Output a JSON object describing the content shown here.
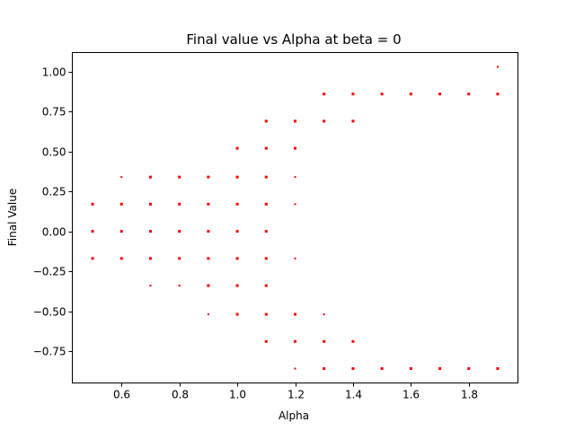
{
  "chart_data": {
    "type": "scatter",
    "title": "Final value vs Alpha at beta = 0",
    "xlabel": "Alpha",
    "ylabel": "Final Value",
    "xlim": [
      0.43,
      1.97
    ],
    "ylim": [
      -0.95,
      1.12
    ],
    "xticks": [
      0.6,
      0.8,
      1.0,
      1.2,
      1.4,
      1.6,
      1.8
    ],
    "xtick_labels": [
      "0.6",
      "0.8",
      "1.0",
      "1.2",
      "1.4",
      "1.6",
      "1.8"
    ],
    "yticks": [
      -0.75,
      -0.5,
      -0.25,
      0.0,
      0.25,
      0.5,
      0.75,
      1.0
    ],
    "ytick_labels": [
      "−0.75",
      "−0.50",
      "−0.25",
      "0.00",
      "0.25",
      "0.50",
      "0.75",
      "1.00"
    ],
    "grid": false,
    "marker_color": "#ff0000",
    "series": [
      {
        "points": [
          [
            0.5,
            0.17,
            2
          ],
          [
            0.5,
            0.0,
            2
          ],
          [
            0.5,
            -0.17,
            2
          ],
          [
            0.6,
            0.34,
            1
          ],
          [
            0.6,
            0.17,
            2
          ],
          [
            0.6,
            0.0,
            2
          ],
          [
            0.6,
            -0.17,
            2
          ],
          [
            0.7,
            0.34,
            2
          ],
          [
            0.7,
            0.17,
            2
          ],
          [
            0.7,
            0.0,
            2
          ],
          [
            0.7,
            -0.17,
            2
          ],
          [
            0.7,
            -0.34,
            1
          ],
          [
            0.8,
            0.34,
            2
          ],
          [
            0.8,
            0.17,
            2
          ],
          [
            0.8,
            0.0,
            2
          ],
          [
            0.8,
            -0.17,
            2
          ],
          [
            0.8,
            -0.34,
            1
          ],
          [
            0.9,
            0.34,
            2
          ],
          [
            0.9,
            0.17,
            2
          ],
          [
            0.9,
            0.0,
            2
          ],
          [
            0.9,
            -0.17,
            2
          ],
          [
            0.9,
            -0.34,
            2
          ],
          [
            0.9,
            -0.52,
            1
          ],
          [
            1.0,
            0.52,
            2
          ],
          [
            1.0,
            0.34,
            2
          ],
          [
            1.0,
            0.17,
            2
          ],
          [
            1.0,
            0.0,
            2
          ],
          [
            1.0,
            -0.17,
            2
          ],
          [
            1.0,
            -0.34,
            2
          ],
          [
            1.0,
            -0.52,
            2
          ],
          [
            1.1,
            0.69,
            2
          ],
          [
            1.1,
            0.52,
            2
          ],
          [
            1.1,
            0.34,
            2
          ],
          [
            1.1,
            0.17,
            2
          ],
          [
            1.1,
            0.0,
            2
          ],
          [
            1.1,
            -0.17,
            2
          ],
          [
            1.1,
            -0.34,
            2
          ],
          [
            1.1,
            -0.52,
            2
          ],
          [
            1.1,
            -0.69,
            2
          ],
          [
            1.2,
            0.69,
            2
          ],
          [
            1.2,
            0.52,
            2
          ],
          [
            1.2,
            0.34,
            1
          ],
          [
            1.2,
            0.17,
            1
          ],
          [
            1.2,
            -0.17,
            1
          ],
          [
            1.2,
            -0.52,
            2
          ],
          [
            1.2,
            -0.69,
            2
          ],
          [
            1.2,
            -0.86,
            1
          ],
          [
            1.3,
            0.86,
            2
          ],
          [
            1.3,
            0.69,
            2
          ],
          [
            1.3,
            -0.52,
            1
          ],
          [
            1.3,
            -0.69,
            2
          ],
          [
            1.3,
            -0.86,
            2
          ],
          [
            1.4,
            0.86,
            2
          ],
          [
            1.4,
            0.69,
            2
          ],
          [
            1.4,
            -0.69,
            2
          ],
          [
            1.4,
            -0.86,
            2
          ],
          [
            1.5,
            0.86,
            2
          ],
          [
            1.5,
            -0.86,
            2
          ],
          [
            1.6,
            0.86,
            2
          ],
          [
            1.6,
            -0.86,
            2
          ],
          [
            1.7,
            0.86,
            2
          ],
          [
            1.7,
            -0.86,
            2
          ],
          [
            1.8,
            0.86,
            2
          ],
          [
            1.8,
            -0.86,
            2
          ],
          [
            1.9,
            1.03,
            1
          ],
          [
            1.9,
            0.86,
            2
          ],
          [
            1.9,
            -0.86,
            2
          ]
        ]
      }
    ]
  }
}
